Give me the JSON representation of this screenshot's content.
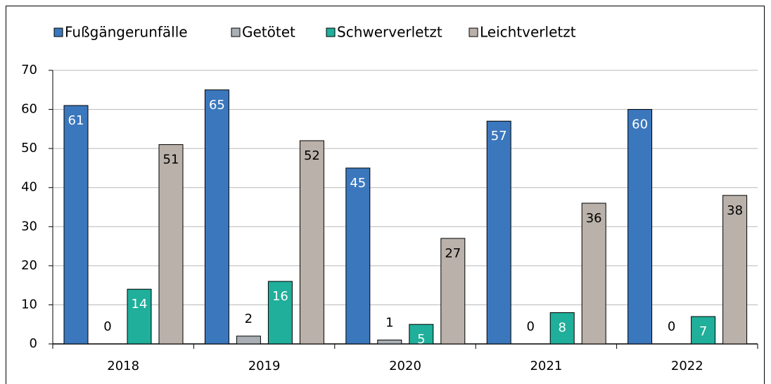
{
  "chart_data": {
    "type": "bar",
    "categories": [
      "2018",
      "2019",
      "2020",
      "2021",
      "2022"
    ],
    "series": [
      {
        "name": "Fußgängerunfälle",
        "color": "#3b77bd",
        "values": [
          61,
          65,
          45,
          57,
          60
        ]
      },
      {
        "name": "Getötet",
        "color": "#a9afb5",
        "values": [
          0,
          2,
          1,
          0,
          0
        ]
      },
      {
        "name": "Schwerverletzt",
        "color": "#1faf9a",
        "values": [
          14,
          16,
          5,
          8,
          7
        ]
      },
      {
        "name": "Leichtverletzt",
        "color": "#bab1aa",
        "values": [
          51,
          52,
          27,
          36,
          38
        ]
      }
    ],
    "ylim": [
      0,
      70
    ],
    "yticks": [
      0,
      10,
      20,
      30,
      40,
      50,
      60,
      70
    ],
    "grid": true,
    "legend": "top"
  }
}
